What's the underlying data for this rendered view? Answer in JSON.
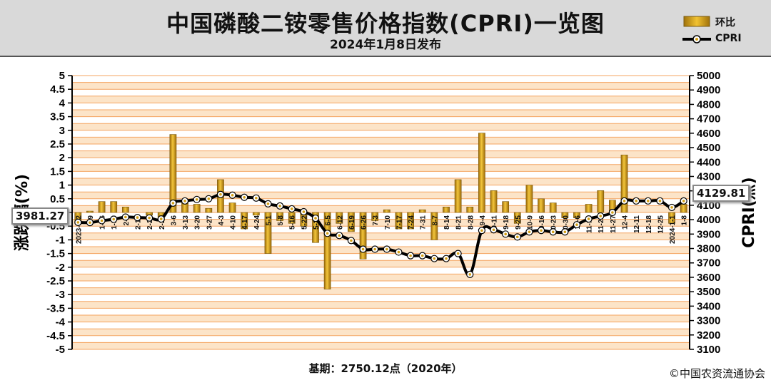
{
  "header": {
    "title": "中国磷酸二铵零售价格指数(CPRI)一览图",
    "subtitle": "2024年1月8日发布"
  },
  "legend": {
    "bar_label": "环比",
    "line_label": "CPRI"
  },
  "colors": {
    "bar": "#d4a017",
    "line": "#000000",
    "grid": "#f4a460",
    "band": "#fce4c8",
    "marker_fill": "#ffffff",
    "marker_dot": "#d4a017"
  },
  "callouts": {
    "left": "3981.27",
    "right": "4129.81"
  },
  "footer": {
    "base": "基期：2750.12点（2020年）",
    "copyright": "©中国农资流通协会"
  },
  "chart_data": {
    "type": "bar+line",
    "ylabel_left": "涨跌幅(%)",
    "ylabel_right": "CPRI(点)",
    "ylim_left": [
      -5,
      5
    ],
    "ylim_right": [
      3100,
      5000
    ],
    "yticks_left": [
      "5",
      "4.5",
      "4",
      "3.5",
      "3",
      "2.5",
      "2",
      "1.5",
      "1",
      "0.5",
      "0",
      "-0.5",
      "-1",
      "-1.5",
      "-2",
      "-2.5",
      "-3",
      "-3.5",
      "-4",
      "-4.5",
      "-5"
    ],
    "yticks_right": [
      "5000",
      "4900",
      "4800",
      "4700",
      "4600",
      "4500",
      "4400",
      "4300",
      "4200",
      "4100",
      "4000",
      "3900",
      "3800",
      "3700",
      "3600",
      "3500",
      "3400",
      "3300",
      "3200",
      "3100"
    ],
    "categories": [
      "2023-1-2",
      "1-9",
      "1-16",
      "1-30",
      "2-6",
      "2-13",
      "2-20",
      "2-27",
      "3-6",
      "3-13",
      "3-20",
      "3-27",
      "4-3",
      "4-10",
      "4-17",
      "4-24",
      "5-1",
      "5-8",
      "5-16",
      "5-22",
      "5-29",
      "6-5",
      "6-12",
      "6-19",
      "6-26",
      "7-3",
      "7-10",
      "7-17",
      "7-24",
      "7-31",
      "8-7",
      "8-14",
      "8-21",
      "8-28",
      "9-4",
      "9-11",
      "9-18",
      "9-25",
      "10-9",
      "10-16",
      "10-23",
      "10-30",
      "11-6",
      "11-13",
      "11-20",
      "11-27",
      "12-4",
      "12-11",
      "12-18",
      "12-25",
      "2024-1-1",
      "1-8"
    ],
    "series": [
      {
        "name": "环比",
        "values": [
          -0.4,
          0.05,
          0.4,
          0.4,
          0.2,
          0.0,
          -0.1,
          -0.3,
          2.85,
          0.4,
          0.3,
          0.15,
          1.2,
          0.35,
          -0.6,
          -0.1,
          -1.5,
          -0.3,
          -0.4,
          -0.5,
          -1.1,
          -2.8,
          -0.4,
          -0.7,
          -1.7,
          -0.3,
          0.1,
          -0.6,
          -0.6,
          0.1,
          -1.0,
          0.2,
          1.2,
          0.2,
          2.9,
          0.8,
          0.4,
          -0.4,
          1.0,
          0.5,
          0.35,
          -0.2,
          -0.2,
          0.3,
          0.8,
          0.45,
          2.1,
          0.0,
          0.0,
          0.0,
          -0.4,
          0.3
        ]
      },
      {
        "name": "CPRI",
        "values": [
          3981.27,
          3980,
          3993,
          4003,
          4018,
          4015,
          4012,
          4005,
          4115,
          4130,
          4140,
          4145,
          4175,
          4170,
          4155,
          4150,
          4110,
          4095,
          4075,
          4055,
          4010,
          3905,
          3890,
          3855,
          3795,
          3795,
          3795,
          3775,
          3750,
          3750,
          3730,
          3730,
          3765,
          3620,
          3925,
          3930,
          3900,
          3880,
          3915,
          3925,
          3915,
          3915,
          3965,
          4005,
          4025,
          4050,
          4130,
          4130,
          4130,
          4130,
          4085,
          4129.81
        ]
      }
    ]
  }
}
